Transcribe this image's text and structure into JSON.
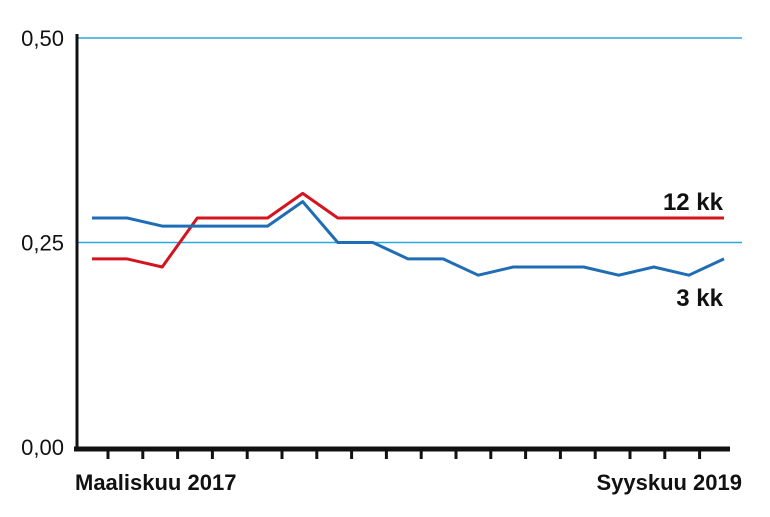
{
  "chart_data": {
    "type": "line",
    "x_start_label": "Maaliskuu 2017",
    "x_end_label": "Syyskuu 2019",
    "ylim": [
      0,
      0.5
    ],
    "yticks": [
      "0,00",
      "0,25",
      "0,50"
    ],
    "gridlines": [
      0.25,
      0.5
    ],
    "colors": {
      "grid": "#29a8e0",
      "axis": "#111111"
    },
    "series": [
      {
        "name": "12 kk",
        "color": "#d4141e",
        "values": [
          0.23,
          0.23,
          0.22,
          0.28,
          0.28,
          0.28,
          0.31,
          0.28,
          0.28,
          0.28,
          0.28,
          0.28,
          0.28,
          0.28,
          0.28,
          0.28,
          0.28,
          0.28,
          0.28
        ]
      },
      {
        "name": "3 kk",
        "color": "#1f6db5",
        "values": [
          0.28,
          0.28,
          0.27,
          0.27,
          0.27,
          0.27,
          0.3,
          0.25,
          0.25,
          0.23,
          0.23,
          0.21,
          0.22,
          0.22,
          0.22,
          0.21,
          0.22,
          0.21,
          0.23
        ]
      }
    ]
  }
}
